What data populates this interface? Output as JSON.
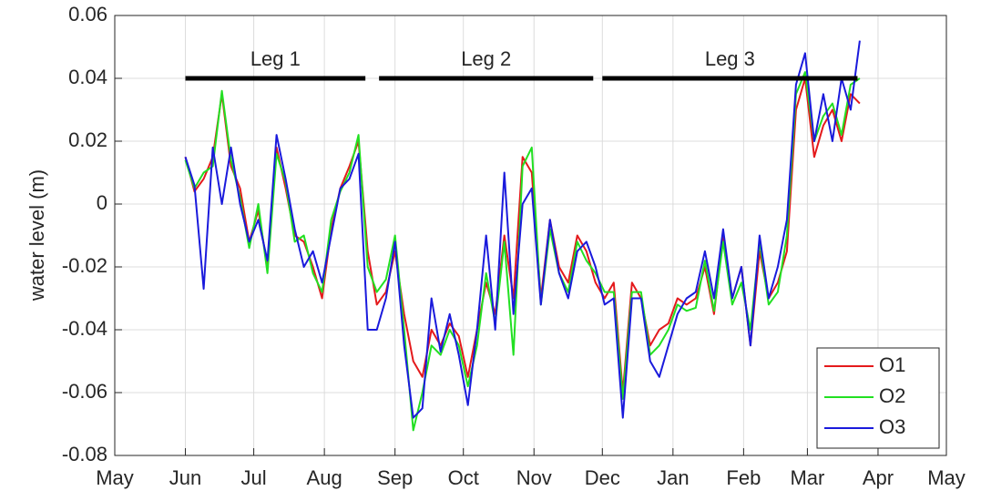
{
  "chart_data": {
    "type": "line",
    "ylabel": "water level (m)",
    "xlim": [
      0,
      365
    ],
    "xticks": [
      {
        "value": 0,
        "label": "May"
      },
      {
        "value": 31,
        "label": "Jun"
      },
      {
        "value": 61,
        "label": "Jul"
      },
      {
        "value": 92,
        "label": "Aug"
      },
      {
        "value": 123,
        "label": "Sep"
      },
      {
        "value": 153,
        "label": "Oct"
      },
      {
        "value": 184,
        "label": "Nov"
      },
      {
        "value": 214,
        "label": "Dec"
      },
      {
        "value": 245,
        "label": "Jan"
      },
      {
        "value": 276,
        "label": "Feb"
      },
      {
        "value": 304,
        "label": "Mar"
      },
      {
        "value": 335,
        "label": "Apr"
      },
      {
        "value": 365,
        "label": "May"
      }
    ],
    "ylim": [
      -0.08,
      0.06
    ],
    "yticks": [
      -0.08,
      -0.06,
      -0.04,
      -0.02,
      0,
      0.02,
      0.04,
      0.06
    ],
    "grid": true,
    "legend": "lower right",
    "legs": [
      {
        "label": "Leg 1",
        "start": 31,
        "end": 110,
        "y": 0.04
      },
      {
        "label": "Leg 2",
        "start": 116,
        "end": 210,
        "y": 0.04
      },
      {
        "label": "Leg 3",
        "start": 214,
        "end": 326,
        "y": 0.04
      }
    ],
    "x": [
      31,
      35,
      39,
      43,
      47,
      51,
      55,
      59,
      63,
      67,
      71,
      75,
      79,
      83,
      87,
      91,
      95,
      99,
      103,
      107,
      111,
      115,
      119,
      123,
      127,
      131,
      135,
      139,
      143,
      147,
      151,
      155,
      159,
      163,
      167,
      171,
      175,
      179,
      183,
      187,
      191,
      195,
      199,
      203,
      207,
      211,
      215,
      219,
      223,
      227,
      231,
      235,
      239,
      243,
      247,
      251,
      255,
      259,
      263,
      267,
      271,
      275,
      279,
      283,
      287,
      291,
      295,
      299,
      303,
      307,
      311,
      315,
      319,
      323,
      327
    ],
    "series": [
      {
        "name": "O1",
        "color": "#e41a1c",
        "values": [
          0.015,
          0.004,
          0.008,
          0.015,
          0.035,
          0.012,
          0.005,
          -0.012,
          -0.002,
          -0.02,
          0.018,
          0.005,
          -0.01,
          -0.012,
          -0.02,
          -0.03,
          -0.008,
          0.005,
          0.012,
          0.02,
          -0.015,
          -0.032,
          -0.028,
          -0.015,
          -0.035,
          -0.05,
          -0.055,
          -0.04,
          -0.045,
          -0.038,
          -0.042,
          -0.055,
          -0.04,
          -0.025,
          -0.035,
          -0.01,
          -0.03,
          0.015,
          0.01,
          -0.03,
          -0.005,
          -0.02,
          -0.025,
          -0.01,
          -0.015,
          -0.025,
          -0.03,
          -0.025,
          -0.06,
          -0.025,
          -0.03,
          -0.045,
          -0.04,
          -0.038,
          -0.03,
          -0.032,
          -0.03,
          -0.02,
          -0.035,
          -0.01,
          -0.03,
          -0.02,
          -0.045,
          -0.015,
          -0.03,
          -0.025,
          -0.015,
          0.03,
          0.04,
          0.015,
          0.025,
          0.03,
          0.02,
          0.035,
          0.032
        ]
      },
      {
        "name": "O2",
        "color": "#22e022",
        "values": [
          0.014,
          0.005,
          0.01,
          0.012,
          0.036,
          0.014,
          0.002,
          -0.014,
          0.0,
          -0.022,
          0.016,
          0.007,
          -0.012,
          -0.01,
          -0.022,
          -0.028,
          -0.005,
          0.004,
          0.01,
          0.022,
          -0.02,
          -0.028,
          -0.024,
          -0.01,
          -0.04,
          -0.072,
          -0.06,
          -0.045,
          -0.048,
          -0.04,
          -0.045,
          -0.058,
          -0.045,
          -0.022,
          -0.038,
          -0.012,
          -0.048,
          0.012,
          0.018,
          -0.032,
          -0.008,
          -0.022,
          -0.028,
          -0.012,
          -0.018,
          -0.022,
          -0.028,
          -0.028,
          -0.062,
          -0.028,
          -0.028,
          -0.048,
          -0.045,
          -0.04,
          -0.032,
          -0.034,
          -0.033,
          -0.018,
          -0.034,
          -0.012,
          -0.032,
          -0.025,
          -0.04,
          -0.012,
          -0.032,
          -0.028,
          -0.01,
          0.035,
          0.042,
          0.02,
          0.028,
          0.032,
          0.022,
          0.038,
          0.04
        ]
      },
      {
        "name": "O3",
        "color": "#1a1adc",
        "values": [
          0.015,
          0.006,
          -0.027,
          0.018,
          0.0,
          0.018,
          0.0,
          -0.012,
          -0.005,
          -0.018,
          0.022,
          0.008,
          -0.008,
          -0.02,
          -0.015,
          -0.025,
          -0.01,
          0.005,
          0.008,
          0.016,
          -0.04,
          -0.04,
          -0.03,
          -0.012,
          -0.045,
          -0.068,
          -0.065,
          -0.03,
          -0.047,
          -0.035,
          -0.048,
          -0.064,
          -0.04,
          -0.01,
          -0.04,
          0.01,
          -0.035,
          0.0,
          0.005,
          -0.032,
          -0.005,
          -0.022,
          -0.03,
          -0.015,
          -0.012,
          -0.02,
          -0.032,
          -0.03,
          -0.068,
          -0.03,
          -0.03,
          -0.05,
          -0.055,
          -0.045,
          -0.035,
          -0.03,
          -0.028,
          -0.015,
          -0.03,
          -0.008,
          -0.03,
          -0.02,
          -0.045,
          -0.01,
          -0.03,
          -0.02,
          -0.005,
          0.038,
          0.048,
          0.02,
          0.035,
          0.02,
          0.04,
          0.03,
          0.052
        ]
      }
    ]
  }
}
